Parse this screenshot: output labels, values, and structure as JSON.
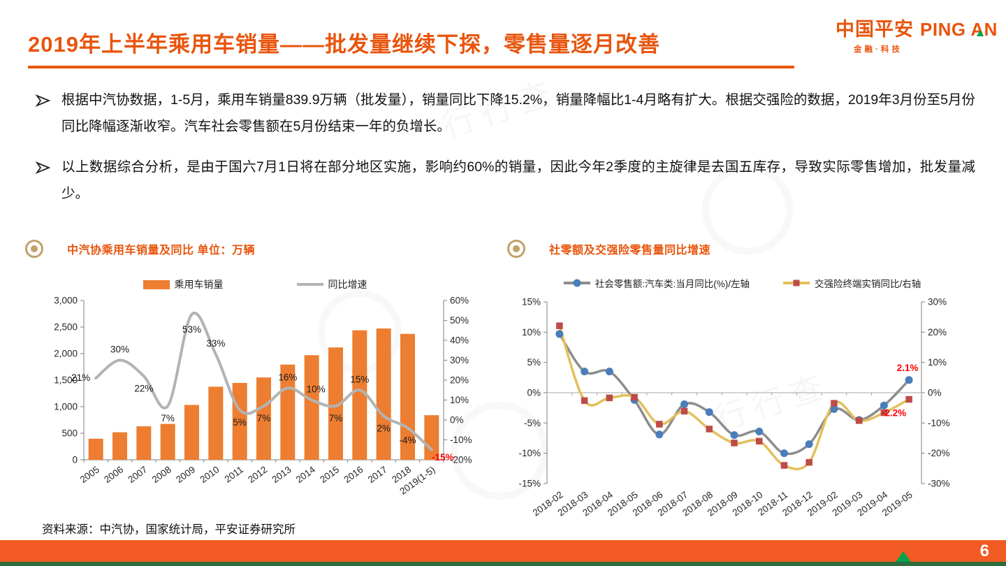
{
  "header": {
    "title": "2019年上半年乘用车销量——批发量继续下探，零售量逐月改善",
    "logo": {
      "cn": "中国平安",
      "en": "PING AN",
      "sub": "金融·科技"
    }
  },
  "bullets": [
    "根据中汽协数据，1-5月，乘用车销量839.9万辆（批发量），销量同比下降15.2%，销量降幅比1-4月略有扩大。根据交强险的数据，2019年3月份至5月份同比降幅逐渐收窄。汽车社会零售额在5月份结束一年的负增长。",
    "以上数据综合分析，是由于国六7月1日将在部分地区实施，影响约60%的销量，因此今年2季度的主旋律是去国五库存，导致实际零售增加，批发量减少。"
  ],
  "watermark": "行行查",
  "chart_data": [
    {
      "type": "bar",
      "title": "中汽协乘用车销量及同比 单位：万辆",
      "categories": [
        "2005",
        "2006",
        "2007",
        "2008",
        "2009",
        "2010",
        "2011",
        "2012",
        "2013",
        "2014",
        "2015",
        "2016",
        "2017",
        "2018",
        "2019(1-5)"
      ],
      "series": [
        {
          "name": "乘用车销量",
          "type": "bar",
          "axis": "left",
          "values": [
            397,
            518,
            630,
            676,
            1033,
            1376,
            1447,
            1550,
            1793,
            1970,
            2115,
            2438,
            2472,
            2371,
            840
          ]
        },
        {
          "name": "同比增速",
          "type": "line",
          "axis": "right",
          "values": [
            21,
            30,
            22,
            7,
            53,
            33,
            5,
            7,
            16,
            10,
            7,
            15,
            2,
            -4,
            -15
          ],
          "point_labels": [
            "21%",
            "30%",
            "22%",
            "7%",
            "53%",
            "33%",
            "5%",
            "7%",
            "16%",
            "10%",
            "7%",
            "15%",
            "2%",
            "-4%",
            "-15%"
          ]
        }
      ],
      "left_axis": {
        "min": 0,
        "max": 3000,
        "ticks": [
          "0",
          "500",
          "1,000",
          "1,500",
          "2,000",
          "2,500",
          "3,000"
        ]
      },
      "right_axis": {
        "min": -20,
        "max": 60,
        "ticks": [
          "-20%",
          "-10%",
          "0%",
          "10%",
          "20%",
          "30%",
          "40%",
          "50%",
          "60%"
        ]
      },
      "grid": false,
      "legend_position": "top"
    },
    {
      "type": "line",
      "title": "社零额及交强险零售量同比增速",
      "categories": [
        "2018-02",
        "2018-03",
        "2018-04",
        "2018-05",
        "2018-06",
        "2018-07",
        "2018-08",
        "2018-09",
        "2018-10",
        "2018-11",
        "2018-12",
        "2019-02",
        "2019-03",
        "2019-04",
        "2019-05"
      ],
      "series": [
        {
          "name": "社会零售额:汽车类:当月同比(%)/左轴",
          "axis": "left",
          "marker": "circle",
          "values": [
            9.7,
            3.5,
            3.5,
            -1.2,
            -6.9,
            -1.9,
            -3.2,
            -7,
            -6.4,
            -10,
            -8.5,
            -2.7,
            -4.5,
            -2.1,
            2.1
          ],
          "end_label": "2.1%"
        },
        {
          "name": "交强险终端实销同比/右轴",
          "axis": "right",
          "marker": "square",
          "values": [
            22.1,
            -2.6,
            -1.7,
            -1.5,
            -10.4,
            -6.1,
            -12,
            -16.6,
            -16,
            -24,
            -23,
            -3.5,
            -9.2,
            -6.6,
            -2.2
          ],
          "end_label": "-2.2%"
        }
      ],
      "left_axis": {
        "min": -15,
        "max": 15,
        "ticks": [
          "15%",
          "10%",
          "5%",
          "0%",
          "-5%",
          "-10%",
          "-15%"
        ]
      },
      "right_axis": {
        "min": -30,
        "max": 30,
        "ticks": [
          "30%",
          "20%",
          "10%",
          "0%",
          "-10%",
          "-20%",
          "-30%"
        ]
      },
      "grid": false,
      "legend_position": "top"
    }
  ],
  "footer": {
    "source": "资料来源：中汽协，国家统计局，平安证券研究所",
    "page": "6"
  },
  "colors": {
    "accent_orange": "#E8550D",
    "bar_orange": "#ED7D31",
    "line_gray": "#B3B3B3",
    "series_gray": "#8C8C8C",
    "marker_blue": "#4A7EBB",
    "line_gold": "#E2C05C",
    "marker_red": "#BE4B48",
    "negative_red": "#FF0000",
    "footer_orange": "#F15A22",
    "strip_green": "#2F6B3C",
    "logo_green": "#00A34E",
    "bullseye_gold": "#C2A169",
    "axis_text": "#262626"
  }
}
